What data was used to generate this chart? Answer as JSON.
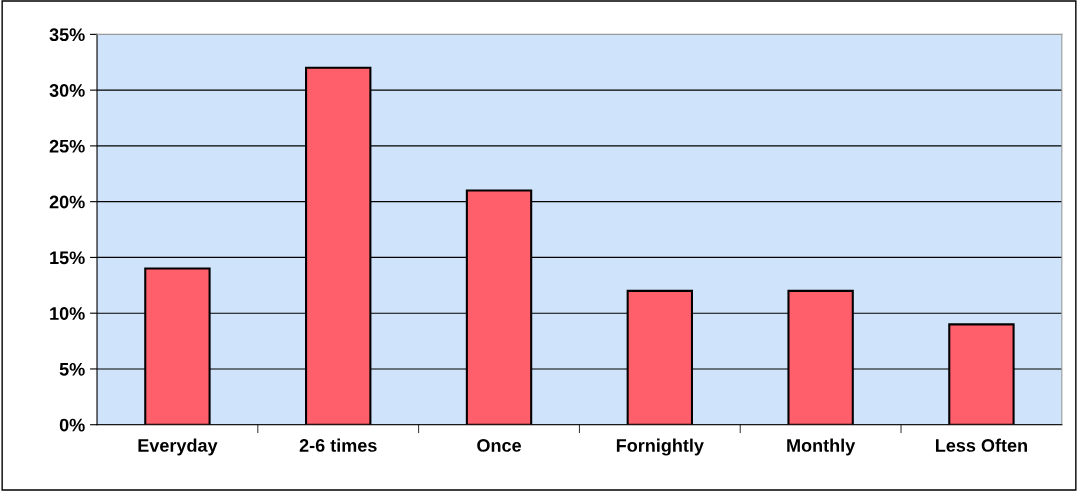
{
  "chart_data": {
    "type": "bar",
    "categories": [
      "Everyday",
      "2-6 times",
      "Once",
      "Fornightly",
      "Monthly",
      "Less Often"
    ],
    "values": [
      14,
      32,
      21,
      12,
      12,
      9
    ],
    "color": "#ff5f6b",
    "ylim": [
      0,
      35
    ],
    "yticks": [
      {
        "value": 0,
        "label": "0%"
      },
      {
        "value": 5,
        "label": "5%"
      },
      {
        "value": 10,
        "label": "10%"
      },
      {
        "value": 15,
        "label": "15%"
      },
      {
        "value": 20,
        "label": "20%"
      },
      {
        "value": 25,
        "label": "25%"
      },
      {
        "value": 30,
        "label": "30%"
      },
      {
        "value": 35,
        "label": "35%"
      }
    ],
    "grid": "y",
    "legend": false
  }
}
